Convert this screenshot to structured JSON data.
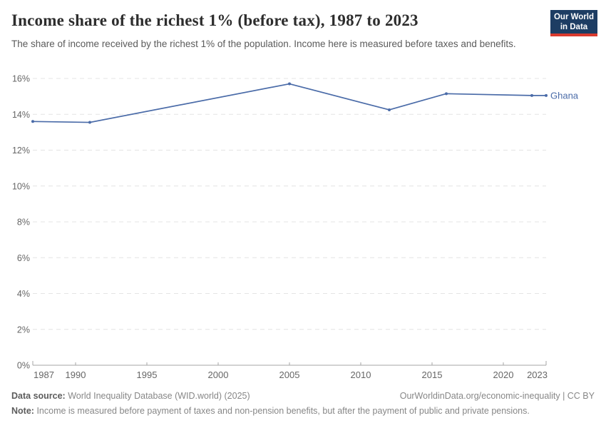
{
  "header": {
    "title": "Income share of the richest 1% (before tax), 1987 to 2023",
    "subtitle": "The share of income received by the richest 1% of the population. Income here is measured before taxes and benefits.",
    "logo": {
      "line1": "Our World",
      "line2": "in Data"
    }
  },
  "colors": {
    "line": "#4a6ba8",
    "grid": "#e4e4e4",
    "axis": "#a5a5a5",
    "tick_text": "#666666",
    "logo_bg": "#1d3d63",
    "logo_stripe": "#d93a2e"
  },
  "chart_data": {
    "type": "line",
    "title": "Income share of the richest 1% (before tax), 1987 to 2023",
    "xlabel": "",
    "ylabel": "",
    "x_range": [
      1987,
      2023
    ],
    "ylim": [
      0,
      16
    ],
    "grid": "horizontal-dashed",
    "legend_position": "end-of-line",
    "y_tick_suffix": "%",
    "x_ticks": [
      1987,
      1990,
      1995,
      2000,
      2005,
      2010,
      2015,
      2020,
      2023
    ],
    "y_ticks": [
      0,
      2,
      4,
      6,
      8,
      10,
      12,
      14,
      16
    ],
    "series": [
      {
        "name": "Ghana",
        "color": "#4a6ba8",
        "x": [
          1987,
          1991,
          2005,
          2012,
          2016,
          2022,
          2023
        ],
        "values": [
          13.6,
          13.55,
          15.7,
          14.25,
          15.15,
          15.05,
          15.05
        ]
      }
    ]
  },
  "footer": {
    "source_label": "Data source:",
    "source_text": "World Inequality Database (WID.world) (2025)",
    "url": "OurWorldinData.org/economic-inequality | CC BY",
    "note_label": "Note:",
    "note_text": "Income is measured before payment of taxes and non-pension benefits, but after the payment of public and private pensions."
  }
}
